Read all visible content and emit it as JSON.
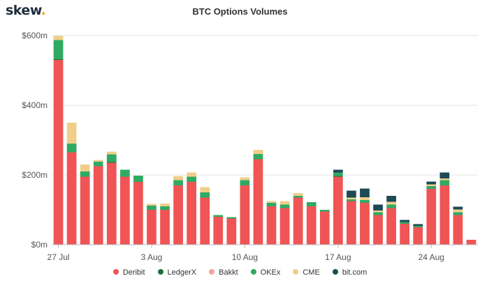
{
  "logo": {
    "text": "skew",
    "dot": "."
  },
  "chart_data": {
    "type": "bar",
    "stacked": true,
    "title": "BTC Options Volumes",
    "xlabel": "",
    "ylabel": "",
    "ylim": [
      0,
      620
    ],
    "y_ticks": [
      {
        "value": 0,
        "label": "$0m"
      },
      {
        "value": 200,
        "label": "$200m"
      },
      {
        "value": 400,
        "label": "$400m"
      },
      {
        "value": 600,
        "label": "$600m"
      }
    ],
    "x_tick_labels": [
      {
        "index": 0,
        "label": "27 Jul"
      },
      {
        "index": 7,
        "label": "3 Aug"
      },
      {
        "index": 14,
        "label": "10 Aug"
      },
      {
        "index": 21,
        "label": "17 Aug"
      },
      {
        "index": 28,
        "label": "24 Aug"
      }
    ],
    "categories": [
      "Jul 27",
      "Jul 28",
      "Jul 29",
      "Jul 30",
      "Jul 31",
      "Aug 1",
      "Aug 2",
      "Aug 3",
      "Aug 4",
      "Aug 5",
      "Aug 6",
      "Aug 7",
      "Aug 8",
      "Aug 9",
      "Aug 10",
      "Aug 11",
      "Aug 12",
      "Aug 13",
      "Aug 14",
      "Aug 15",
      "Aug 16",
      "Aug 17",
      "Aug 18",
      "Aug 19",
      "Aug 20",
      "Aug 21",
      "Aug 22",
      "Aug 23",
      "Aug 24",
      "Aug 25",
      "Aug 26",
      "Aug 27"
    ],
    "series": [
      {
        "name": "Deribit",
        "color": "#f05454",
        "values": [
          530,
          265,
          195,
          225,
          235,
          195,
          180,
          100,
          100,
          170,
          180,
          135,
          80,
          75,
          170,
          245,
          110,
          105,
          135,
          110,
          95,
          195,
          125,
          120,
          85,
          105,
          60,
          50,
          160,
          170,
          85,
          14
        ]
      },
      {
        "name": "LedgerX",
        "color": "#1e6e3e",
        "values": [
          2,
          0,
          0,
          0,
          2,
          0,
          0,
          0,
          0,
          0,
          0,
          0,
          0,
          0,
          0,
          0,
          0,
          0,
          0,
          0,
          0,
          2,
          0,
          0,
          0,
          0,
          0,
          0,
          0,
          0,
          0,
          0
        ]
      },
      {
        "name": "Bakkt",
        "color": "#f4a3a3",
        "values": [
          0,
          0,
          0,
          0,
          0,
          0,
          0,
          0,
          0,
          0,
          0,
          0,
          0,
          0,
          0,
          0,
          0,
          0,
          0,
          0,
          0,
          0,
          0,
          0,
          0,
          0,
          0,
          0,
          0,
          0,
          0,
          0
        ]
      },
      {
        "name": "OKEx",
        "color": "#2faa63",
        "values": [
          55,
          25,
          15,
          13,
          22,
          20,
          18,
          12,
          10,
          15,
          15,
          15,
          5,
          4,
          15,
          15,
          10,
          10,
          5,
          12,
          5,
          10,
          5,
          8,
          8,
          10,
          5,
          4,
          8,
          15,
          8,
          0
        ]
      },
      {
        "name": "CME",
        "color": "#f0ce8a",
        "values": [
          12,
          60,
          20,
          5,
          8,
          0,
          0,
          5,
          8,
          12,
          12,
          15,
          0,
          0,
          8,
          12,
          5,
          10,
          8,
          0,
          0,
          0,
          5,
          8,
          5,
          8,
          0,
          0,
          5,
          5,
          8,
          0
        ]
      },
      {
        "name": "bit.com",
        "color": "#1c4a55",
        "values": [
          0,
          0,
          0,
          0,
          0,
          0,
          0,
          0,
          0,
          0,
          0,
          0,
          0,
          0,
          0,
          0,
          0,
          0,
          0,
          0,
          0,
          8,
          20,
          25,
          17,
          17,
          6,
          5,
          8,
          17,
          8,
          0
        ]
      }
    ],
    "grid": true,
    "legend": "bottom"
  }
}
